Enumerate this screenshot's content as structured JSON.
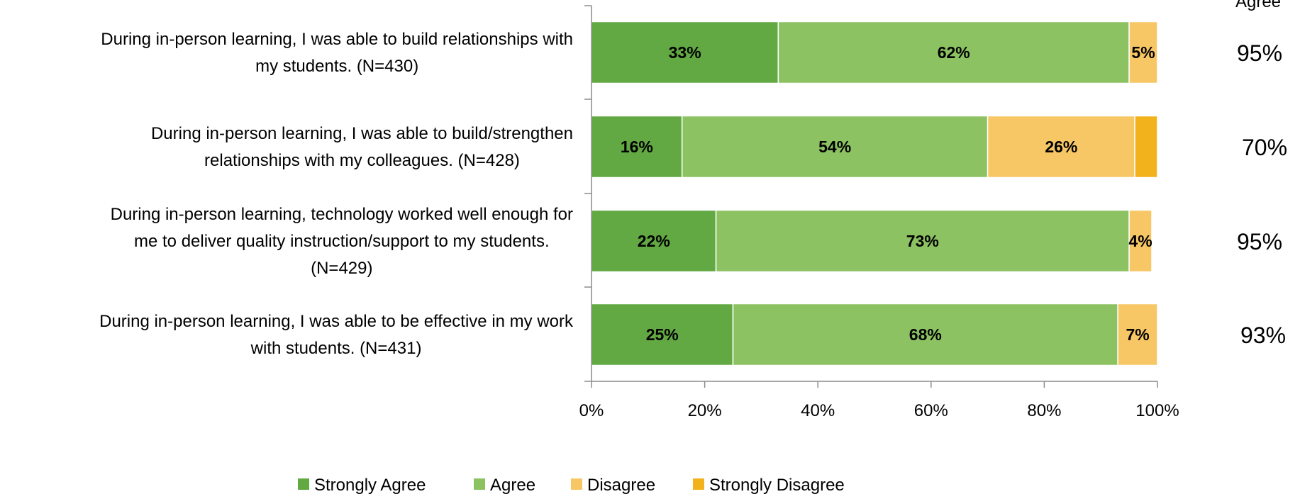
{
  "chart_data": {
    "type": "bar",
    "orientation": "horizontal",
    "stacked": true,
    "categories": [
      [
        "During in-person learning, I was able to build relationships with",
        "my students. (N=430)"
      ],
      [
        "During in-person learning, I was able to build/strengthen",
        "relationships with my colleagues. (N=428)"
      ],
      [
        "During in-person learning, technology worked well enough for",
        "me to deliver quality instruction/support to my students.",
        "(N=429)"
      ],
      [
        "During in-person learning, I was able to be effective in my work",
        "with students. (N=431)"
      ]
    ],
    "series": [
      {
        "name": "Strongly Agree",
        "color": "#62A843",
        "values": [
          33,
          16,
          22,
          25
        ],
        "labels": [
          "33%",
          "16%",
          "22%",
          "25%"
        ]
      },
      {
        "name": "Agree",
        "color": "#8DC263",
        "values": [
          62,
          54,
          73,
          68
        ],
        "labels": [
          "62%",
          "54%",
          "73%",
          "68%"
        ]
      },
      {
        "name": "Disagree",
        "color": "#F7C765",
        "values": [
          5,
          26,
          4,
          7
        ],
        "labels": [
          "5%",
          "26%",
          "4%",
          "7%"
        ]
      },
      {
        "name": "Strongly Disagree",
        "color": "#F2B21B",
        "values": [
          0,
          4,
          0,
          0
        ],
        "labels": [
          "",
          "",
          "",
          ""
        ]
      }
    ],
    "xlim": [
      0,
      100
    ],
    "xticks": [
      "0%",
      "20%",
      "40%",
      "60%",
      "80%",
      "100%"
    ],
    "agree_header": "Agree",
    "agree_totals": [
      "95%",
      "70%",
      "95%",
      "93%"
    ],
    "legend": [
      "Strongly Agree",
      "Agree",
      "Disagree",
      "Strongly Disagree"
    ],
    "legend_position": "bottom",
    "grid": false
  }
}
